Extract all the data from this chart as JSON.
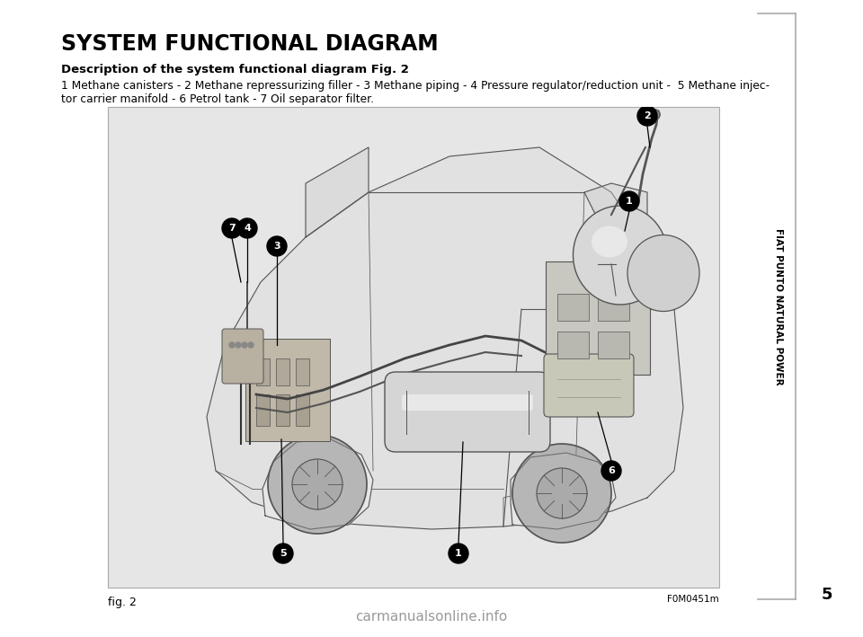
{
  "page_bg": "#ffffff",
  "title": "SYSTEM FUNCTIONAL DIAGRAM",
  "subtitle": "Description of the system functional diagram Fig. 2",
  "desc_line1": "1 Methane canisters - 2 Methane repressurizing filler - 3 Methane piping - 4 Pressure regulator/reduction unit -  5 Methane injec-",
  "desc_line2": "tor carrier manifold - 6 Petrol tank - 7 Oil separator filter.",
  "side_label": "FIAT PUNTO NATURAL POWER",
  "page_number": "5",
  "fig_label": "fig. 2",
  "fig_code": "F0M0451m",
  "watermark": "carmanualsonline.info",
  "img_bg": "#e6e6e6",
  "car_line_color": "#555555",
  "label_bg": "#000000",
  "label_fg": "#ffffff",
  "bracket_color": "#aaaaaa",
  "title_fontsize": 17,
  "subtitle_fontsize": 9.5,
  "desc_fontsize": 8.8,
  "side_label_fontsize": 7.5,
  "page_num_fontsize": 13,
  "fig_label_fontsize": 9,
  "fig_code_fontsize": 7.5,
  "watermark_fontsize": 11
}
